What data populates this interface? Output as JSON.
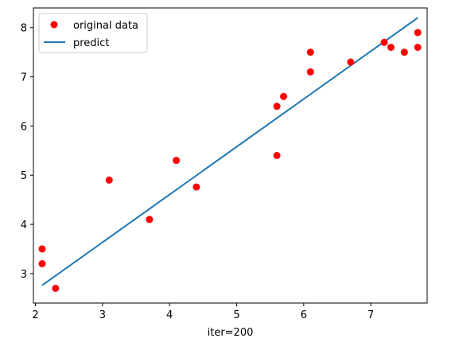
{
  "chart_data": {
    "type": "scatter",
    "xlabel": "iter=200",
    "ylabel": "",
    "xlim": [
      1.97,
      7.84
    ],
    "ylim": [
      2.4,
      8.4
    ],
    "xticks": [
      2,
      3,
      4,
      5,
      6,
      7
    ],
    "yticks": [
      3,
      4,
      5,
      6,
      7,
      8
    ],
    "grid": false,
    "legend_position": "upper-left",
    "series": [
      {
        "name": "original data",
        "kind": "scatter",
        "color": "#ff0000",
        "x": [
          2.1,
          2.1,
          2.3,
          3.1,
          3.7,
          4.1,
          4.4,
          5.6,
          5.6,
          5.7,
          6.1,
          6.1,
          6.7,
          7.2,
          7.3,
          7.5,
          7.7,
          7.7
        ],
        "y": [
          3.5,
          3.2,
          2.7,
          4.9,
          4.1,
          5.3,
          4.76,
          6.4,
          5.4,
          6.6,
          7.5,
          7.1,
          7.3,
          7.7,
          7.6,
          7.5,
          7.9,
          7.6
        ]
      },
      {
        "name": "predict",
        "kind": "line",
        "color": "#1f77b4",
        "x": [
          2.1,
          7.7
        ],
        "y": [
          2.76,
          8.2
        ]
      }
    ]
  }
}
